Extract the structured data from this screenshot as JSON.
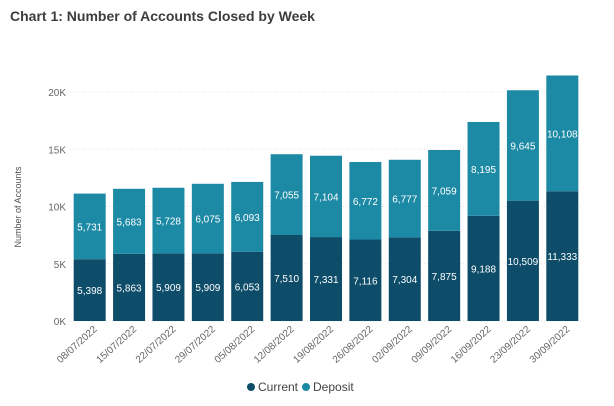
{
  "colors": {
    "current": "#0e4d6a",
    "deposit": "#1d8aa5"
  },
  "chart_data": {
    "type": "bar",
    "stacked": true,
    "title": "Chart 1: Number of Accounts Closed by Week",
    "xlabel": "",
    "ylabel": "Number of Accounts",
    "ylim": [
      0,
      24000
    ],
    "yticks": [
      0,
      5000,
      10000,
      15000,
      20000
    ],
    "ytick_labels": [
      "0K",
      "5K",
      "10K",
      "15K",
      "20K"
    ],
    "grid": true,
    "legend_position": "bottom",
    "categories": [
      "08/07/2022",
      "15/07/2022",
      "22/07/2022",
      "29/07/2022",
      "05/08/2022",
      "12/08/2022",
      "19/08/2022",
      "26/08/2022",
      "02/09/2022",
      "09/09/2022",
      "16/09/2022",
      "23/09/2022",
      "30/09/2022"
    ],
    "series": [
      {
        "name": "Current",
        "values": [
          5398,
          5863,
          5909,
          5909,
          6053,
          7510,
          7331,
          7116,
          7304,
          7875,
          9188,
          10509,
          11333
        ],
        "labels": [
          "5,398",
          "5,863",
          "5,909",
          "5,909",
          "6,053",
          "7,510",
          "7,331",
          "7,116",
          "7,304",
          "7,875",
          "9,188",
          "10,509",
          "11,333"
        ]
      },
      {
        "name": "Deposit",
        "values": [
          5731,
          5683,
          5728,
          6075,
          6093,
          7055,
          7104,
          6772,
          6777,
          7059,
          8195,
          9645,
          10108
        ],
        "labels": [
          "5,731",
          "5,683",
          "5,728",
          "6,075",
          "6,093",
          "7,055",
          "7,104",
          "6,772",
          "6,777",
          "7,059",
          "8,195",
          "9,645",
          "10,108"
        ]
      }
    ]
  }
}
